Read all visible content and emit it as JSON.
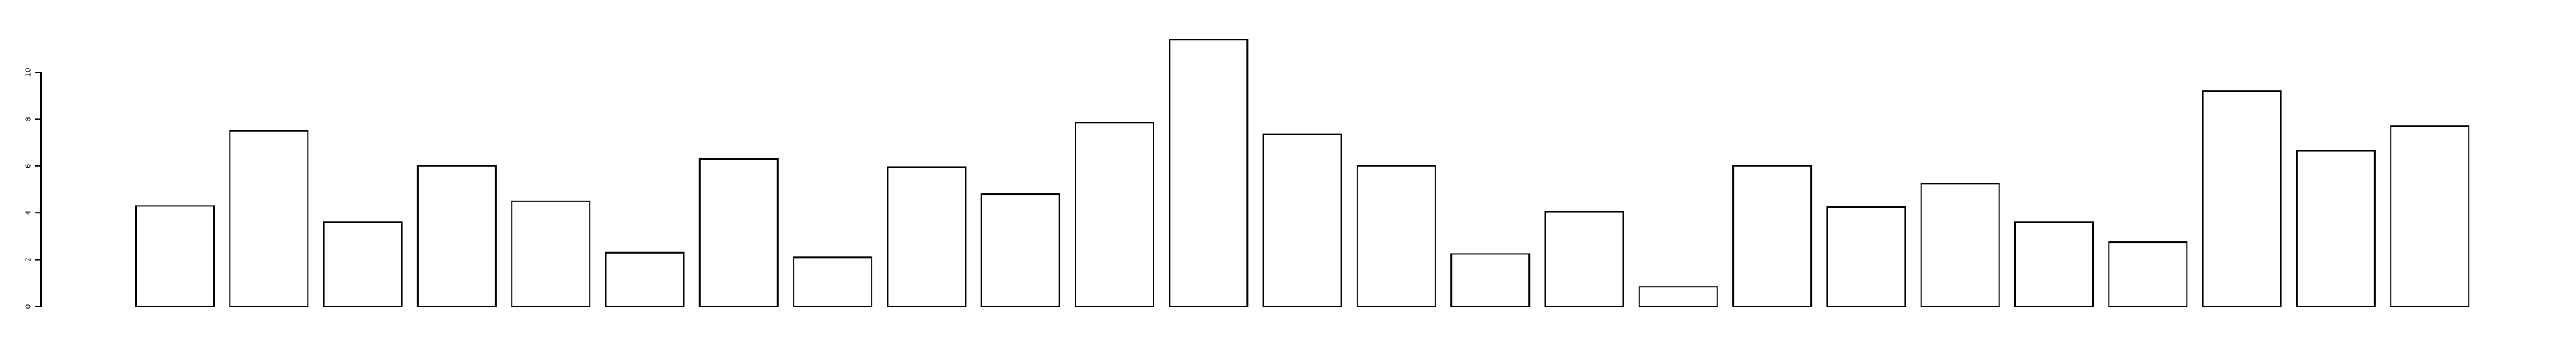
{
  "chart_data": {
    "type": "bar",
    "title": "",
    "xlabel": "",
    "ylabel": "",
    "ylim": [
      0,
      11.5
    ],
    "y_ticks": [
      0,
      2,
      4,
      6,
      8,
      10
    ],
    "y_tick_labels": [
      "0",
      "2",
      "4",
      "6",
      "8",
      "10"
    ],
    "grid": false,
    "bar_fill": "#ffffff",
    "bar_stroke": "#000000",
    "values": [
      4.3,
      7.5,
      3.6,
      6.0,
      4.5,
      2.3,
      6.3,
      2.1,
      5.95,
      4.8,
      7.85,
      11.4,
      7.35,
      6.0,
      2.25,
      4.05,
      0.85,
      6.0,
      4.25,
      5.25,
      3.6,
      2.75,
      9.2,
      6.65,
      7.7
    ]
  }
}
